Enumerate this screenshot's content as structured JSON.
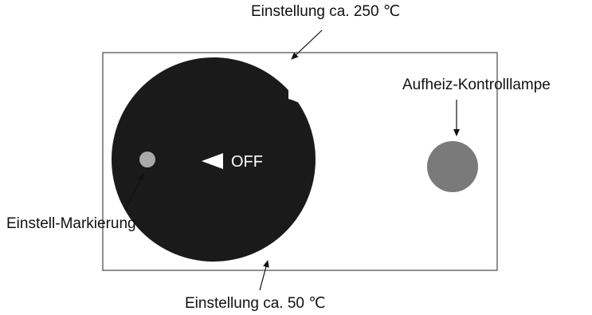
{
  "labels": {
    "top": "Einstellung ca. 250 ℃",
    "lamp": "Aufheiz-Kontrolllampe",
    "marker": "Einstell-Markierung",
    "bottom": "Einstellung ca. 50 ℃"
  },
  "knob": {
    "off_label": "OFF"
  },
  "colors": {
    "knob": "#1a1a1a",
    "panel_border": "#555555",
    "lamp": "#7a7a7a",
    "marker": "#a9a9a9"
  }
}
